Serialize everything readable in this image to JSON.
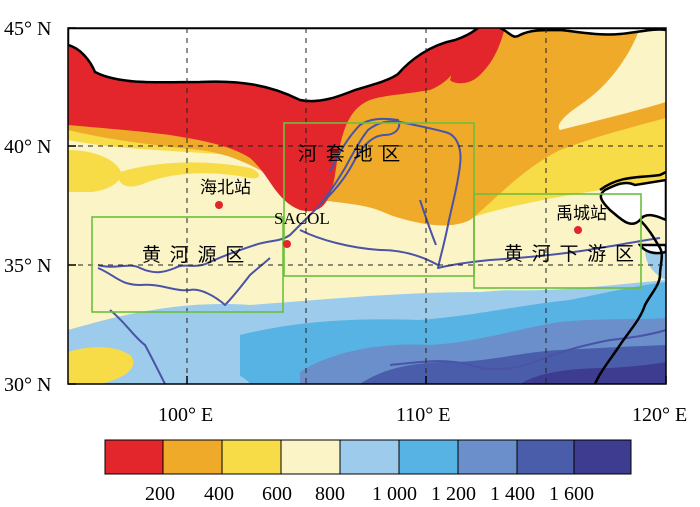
{
  "map": {
    "lat_labels": [
      "45° N",
      "40° N",
      "35° N",
      "30° N"
    ],
    "lon_labels": [
      "100° E",
      "110° E",
      "120° E"
    ],
    "regions": [
      {
        "id": "hetao",
        "label": "河 套 地 区"
      },
      {
        "id": "yellow-river-source",
        "label": "黄 河 源 区"
      },
      {
        "id": "lower-yellow-river",
        "label": "黄 河 下 游 区"
      }
    ],
    "stations": [
      {
        "id": "haibei",
        "label": "海北站"
      },
      {
        "id": "sacol",
        "label": "SACOL"
      },
      {
        "id": "yucheng",
        "label": "禹城站"
      }
    ],
    "colors": {
      "c200": "#e3262b",
      "c400": "#f0aa2a",
      "c600": "#f7dc47",
      "c800": "#fbf4c6",
      "c1000": "#9dcbeb",
      "c1200": "#56b3e4",
      "c1400": "#6a8fcb",
      "c1600": "#4a5dab",
      "cmax": "#3e3c90",
      "box": "#6cbf3c",
      "river": "#4a53a6",
      "station": "#e3262b"
    }
  },
  "legend": {
    "labels": [
      "200",
      "400",
      "600",
      "800",
      "1 000",
      "1 200",
      "1 400",
      "1 600"
    ]
  }
}
